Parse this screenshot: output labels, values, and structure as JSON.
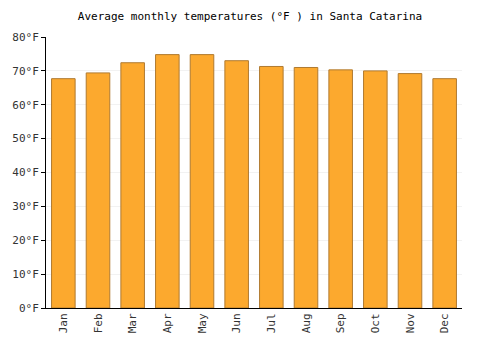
{
  "chart_data": {
    "type": "bar",
    "title": "Average monthly temperatures (°F ) in Santa Catarina",
    "categories": [
      "Jan",
      "Feb",
      "Mar",
      "Apr",
      "May",
      "Jun",
      "Jul",
      "Aug",
      "Sep",
      "Oct",
      "Nov",
      "Dec"
    ],
    "values": [
      67.7,
      69.4,
      72.4,
      74.8,
      74.8,
      73.0,
      71.3,
      71.0,
      70.3,
      70.0,
      69.2,
      67.7
    ],
    "color": "#fca92e",
    "ylim": [
      0,
      80
    ],
    "yticks": [
      {
        "value": 0,
        "label": "0°F"
      },
      {
        "value": 10,
        "label": "10°F"
      },
      {
        "value": 20,
        "label": "20°F"
      },
      {
        "value": 30,
        "label": "30°F"
      },
      {
        "value": 40,
        "label": "40°F"
      },
      {
        "value": 50,
        "label": "50°F"
      },
      {
        "value": 60,
        "label": "60°F"
      },
      {
        "value": 70,
        "label": "70°F"
      },
      {
        "value": 80,
        "label": "80°F"
      }
    ],
    "grid": true
  }
}
